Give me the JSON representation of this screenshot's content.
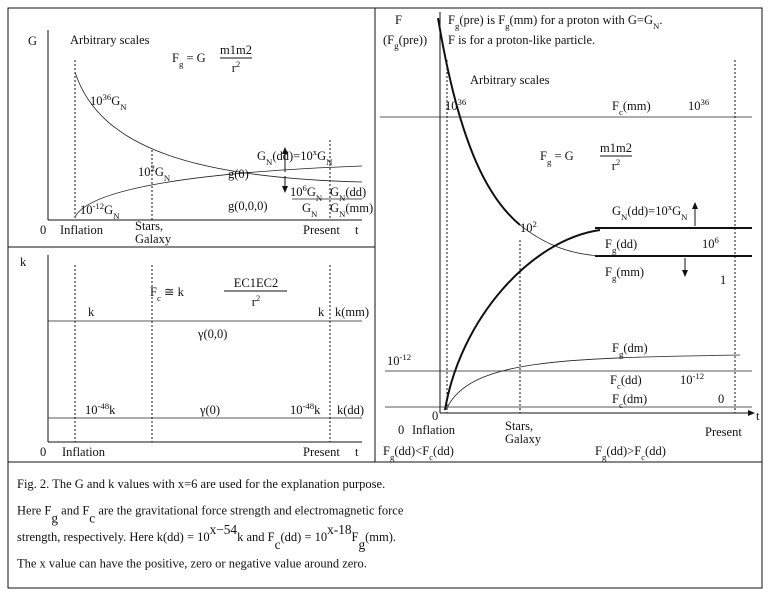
{
  "left_top": {
    "axis_y": "G",
    "note": "Arbitrary scales",
    "formula": {
      "lhs": [
        "F",
        "g",
        " = G"
      ],
      "numerator": "m1m2",
      "denominator": [
        "r",
        "2"
      ]
    },
    "labels": [
      [
        "10",
        "36",
        "G",
        "N"
      ],
      [
        "10",
        "2",
        "G",
        "N"
      ],
      [
        "g(0)"
      ],
      [
        "G",
        "N",
        "(dd)=10",
        "x",
        "G",
        "N"
      ],
      [
        "10",
        "6",
        "G",
        "N"
      ],
      [
        "G",
        "N",
        "(dd)"
      ],
      [
        "g(0,0,0)"
      ],
      [
        "G",
        "N"
      ],
      [
        "G",
        "N",
        "(mm)"
      ],
      [
        "10",
        "-12",
        "G",
        "N"
      ]
    ],
    "x_axis": [
      "0",
      "Inflation",
      "Stars,",
      "Galaxy",
      "Present",
      "t"
    ]
  },
  "left_bottom": {
    "axis_y": "k",
    "formula": {
      "lhs": [
        "F",
        "c",
        " ≅ k"
      ],
      "numerator": "EC1EC2",
      "denominator": [
        "r",
        "2"
      ]
    },
    "labels": [
      [
        "k"
      ],
      [
        "k"
      ],
      [
        "k(mm)"
      ],
      [
        "γ(0,0)"
      ],
      [
        "10",
        "-48",
        "k"
      ],
      [
        "γ(0)"
      ],
      [
        "10",
        "-48",
        "k"
      ],
      [
        "k(dd)"
      ]
    ],
    "x_axis": [
      "0",
      "Inflation",
      "Present",
      "t"
    ]
  },
  "right": {
    "axis_y": [
      [
        "F"
      ],
      [
        "(F",
        "g",
        "(pre))"
      ]
    ],
    "header": [
      [
        "F",
        "g",
        "(pre) is F",
        "g",
        "(mm) for a proton with G=G",
        "N",
        "."
      ],
      [
        "F is for a proton-like particle."
      ]
    ],
    "note": "Arbitrary scales",
    "formula": {
      "lhs": [
        "F",
        "g",
        " = G"
      ],
      "numerator": "m1m2",
      "denominator": [
        "r",
        "2"
      ]
    },
    "labels": [
      [
        "10",
        "36"
      ],
      [
        "F",
        "c",
        "(mm)"
      ],
      [
        "10",
        "36"
      ],
      [
        "G",
        "N",
        "(dd)=10",
        "x",
        "G",
        "N"
      ],
      [
        "10",
        "2"
      ],
      [
        "F",
        "g",
        "(dd)"
      ],
      [
        "10",
        "6"
      ],
      [
        "F",
        "g",
        "(mm)"
      ],
      [
        "1"
      ],
      [
        "F",
        "g",
        "(dm)"
      ],
      [
        "10",
        "-12"
      ],
      [
        "F",
        "c",
        "(dd)"
      ],
      [
        "10",
        "-12"
      ],
      [
        "F",
        "c",
        "(dm)"
      ],
      [
        "0"
      ],
      [
        "0"
      ]
    ],
    "x_axis": [
      "0",
      "Inflation",
      "Stars,",
      "Galaxy",
      "Present",
      "t"
    ],
    "bottom": [
      [
        "F",
        "g",
        "(dd)<F",
        "c",
        "(dd)"
      ],
      [
        "F",
        "g",
        "(dd)>F",
        "c",
        "(dd)"
      ]
    ]
  },
  "caption": [
    [
      "Fig. 2. The G and k values with x=6 are used for the explanation purpose."
    ],
    [
      "Here F",
      "g",
      " and F",
      "c",
      " are the gravitational force strength and electromagnetic force"
    ],
    [
      "strength, respectively. Here k(dd) = 10",
      "x−54",
      "k and F",
      "c",
      "(dd) = 10",
      "x-18",
      "F",
      "g",
      "(mm)."
    ],
    [
      "The x value can have the positive, zero or negative value around zero."
    ]
  ]
}
